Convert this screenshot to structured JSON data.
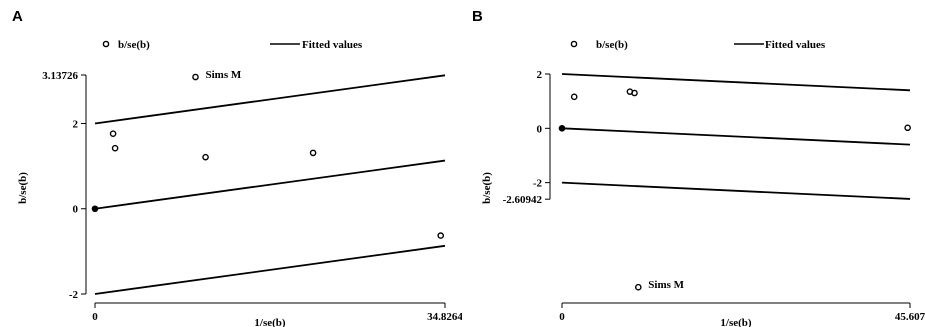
{
  "chart_data": [
    {
      "type": "scatter",
      "panel_label": "A",
      "title": "",
      "xlabel": "1/se(b)",
      "ylabel": "b/se(b)",
      "xlim": [
        0,
        34.8264
      ],
      "ylim": [
        -2,
        3.13726
      ],
      "x_ticks": [
        {
          "value": 0,
          "label": "0"
        },
        {
          "value": 34.8264,
          "label": "34.8264"
        }
      ],
      "y_ticks": [
        {
          "value": -2,
          "label": "-2"
        },
        {
          "value": 0,
          "label": "0"
        },
        {
          "value": 2,
          "label": "2"
        },
        {
          "value": 3.13726,
          "label": "3.13726"
        }
      ],
      "legend": [
        {
          "label": "b/se(b)",
          "marker": "circle"
        },
        {
          "label": "Fitted values",
          "marker": "line"
        }
      ],
      "series": [
        {
          "name": "b/se(b)",
          "kind": "scatter",
          "points": [
            {
              "x": 0,
              "y": 0
            },
            {
              "x": 1.8,
              "y": 1.76
            },
            {
              "x": 2.0,
              "y": 1.42
            },
            {
              "x": 10.0,
              "y": 3.09,
              "annotation": "Sims M"
            },
            {
              "x": 11.0,
              "y": 1.21
            },
            {
              "x": 21.7,
              "y": 1.31
            },
            {
              "x": 34.4,
              "y": -0.63
            }
          ]
        },
        {
          "name": "Fitted values",
          "kind": "line",
          "points": [
            {
              "x": 0,
              "y": 2
            },
            {
              "x": 34.8264,
              "y": 3.13
            }
          ]
        },
        {
          "name": "Fitted values",
          "kind": "line",
          "points": [
            {
              "x": 0,
              "y": 0
            },
            {
              "x": 34.8264,
              "y": 1.13
            }
          ]
        },
        {
          "name": "Fitted values",
          "kind": "line",
          "points": [
            {
              "x": 0,
              "y": -2
            },
            {
              "x": 34.8264,
              "y": -0.87
            }
          ]
        }
      ]
    },
    {
      "type": "scatter",
      "panel_label": "B",
      "title": "",
      "xlabel": "1/se(b)",
      "ylabel": "b/se(b)",
      "xlim": [
        0,
        45.607
      ],
      "ylim": [
        -6.1,
        2
      ],
      "x_ticks": [
        {
          "value": 0,
          "label": "0"
        },
        {
          "value": 45.607,
          "label": "45.607"
        }
      ],
      "y_ticks": [
        {
          "value": -2.60942,
          "label": "-2.60942"
        },
        {
          "value": -2,
          "label": "-2"
        },
        {
          "value": 0,
          "label": "0"
        },
        {
          "value": 2,
          "label": "2"
        }
      ],
      "legend": [
        {
          "label": "b/se(b)",
          "marker": "circle"
        },
        {
          "label": "Fitted values",
          "marker": "line"
        }
      ],
      "series": [
        {
          "name": "b/se(b)",
          "kind": "scatter",
          "points": [
            {
              "x": 0,
              "y": 0
            },
            {
              "x": 1.6,
              "y": 1.16
            },
            {
              "x": 8.9,
              "y": 1.35
            },
            {
              "x": 9.5,
              "y": 1.3
            },
            {
              "x": 45.3,
              "y": 0.02
            },
            {
              "x": 10.0,
              "y": -5.85,
              "annotation": "Sims M"
            }
          ]
        },
        {
          "name": "Fitted values",
          "kind": "line",
          "points": [
            {
              "x": 0,
              "y": 2
            },
            {
              "x": 45.607,
              "y": 1.4
            }
          ]
        },
        {
          "name": "Fitted values",
          "kind": "line",
          "points": [
            {
              "x": 0,
              "y": 0
            },
            {
              "x": 45.607,
              "y": -0.6
            }
          ]
        },
        {
          "name": "Fitted values",
          "kind": "line",
          "points": [
            {
              "x": 0,
              "y": -2
            },
            {
              "x": 45.607,
              "y": -2.6
            }
          ]
        }
      ]
    }
  ]
}
